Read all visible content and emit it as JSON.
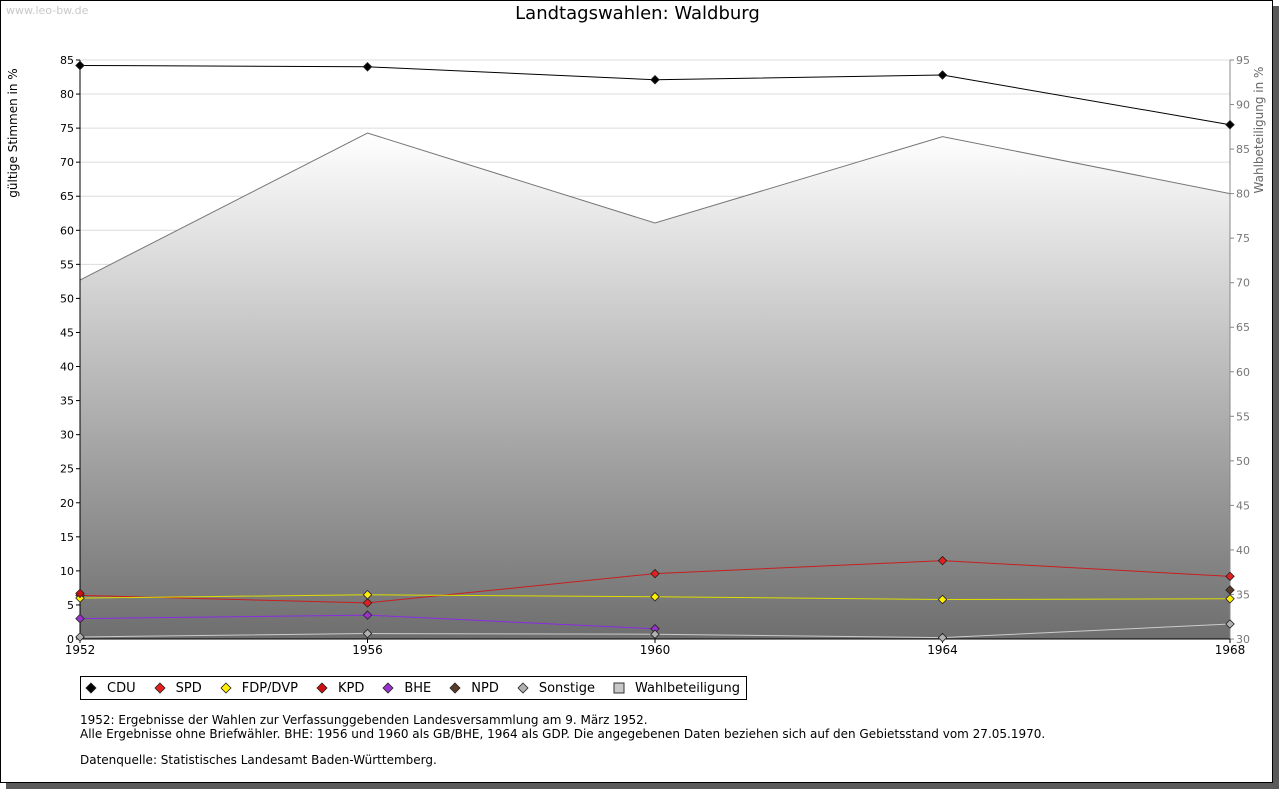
{
  "watermark": "www.leo-bw.de",
  "chart_data": {
    "type": "line",
    "title": "Landtagswahlen: Waldburg",
    "ylabel": "gültige Stimmen in %",
    "y2label": "Wahlbeteiligung in %",
    "xlabel": "",
    "x": [
      "1952",
      "1956",
      "1960",
      "1964",
      "1968"
    ],
    "ylim": [
      0,
      85
    ],
    "y2lim": [
      30,
      95
    ],
    "yticks": [
      0,
      5,
      10,
      15,
      20,
      25,
      30,
      35,
      40,
      45,
      50,
      55,
      60,
      65,
      70,
      75,
      80,
      85
    ],
    "y2ticks": [
      30,
      35,
      40,
      45,
      50,
      55,
      60,
      65,
      70,
      75,
      80,
      85,
      90,
      95
    ],
    "grid": true,
    "legend_position": "bottom-left",
    "series": [
      {
        "name": "CDU",
        "color": "#000000",
        "line": "#000000",
        "values": [
          84.2,
          84.0,
          82.1,
          82.8,
          75.5
        ]
      },
      {
        "name": "SPD",
        "color": "#e32020",
        "line": "#c81e1e",
        "values": [
          6.4,
          5.3,
          9.6,
          11.5,
          9.2
        ]
      },
      {
        "name": "FDP/DVP",
        "color": "#ffee00",
        "line": "#dddd00",
        "values": [
          6.0,
          6.5,
          6.2,
          5.8,
          5.9
        ]
      },
      {
        "name": "KPD",
        "color": "#d01010",
        "line": "#c81e1e",
        "values": [
          6.7,
          null,
          null,
          null,
          null
        ]
      },
      {
        "name": "BHE",
        "color": "#9933cc",
        "line": "#8a2be2",
        "values": [
          3.0,
          3.5,
          1.5,
          null,
          null
        ]
      },
      {
        "name": "NPD",
        "color": "#5a3a2a",
        "line": "#5a3a2a",
        "values": [
          null,
          null,
          null,
          null,
          7.2
        ]
      },
      {
        "name": "Sonstige",
        "color": "#b0b0b0",
        "line": "#cccccc",
        "values": [
          0.3,
          0.8,
          0.7,
          0.2,
          2.2
        ]
      }
    ],
    "area_series": {
      "name": "Wahlbeteiligung",
      "axis": "right",
      "values": [
        70.3,
        86.8,
        76.7,
        86.4,
        80.0
      ]
    }
  },
  "notes": [
    "1952: Ergebnisse der Wahlen zur Verfassunggebenden Landesversammlung am 9. März 1952.",
    "Alle Ergebnisse ohne Briefwähler. BHE: 1956 und 1960 als GB/BHE, 1964 als GDP. Die angegebenen Daten beziehen sich auf den Gebietsstand vom 27.05.1970."
  ],
  "source": "Datenquelle: Statistisches Landesamt Baden-Württemberg."
}
